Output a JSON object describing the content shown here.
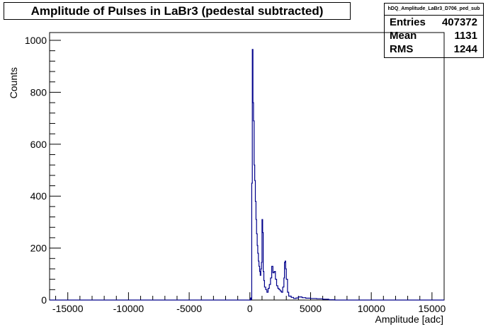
{
  "chart_data": {
    "type": "histogram",
    "title": "Amplitude of Pulses in LaBr3 (pedestal subtracted)",
    "xlabel": "Amplitude [adc]",
    "ylabel": "Counts",
    "xlim": [
      -16500,
      16000
    ],
    "ylim": [
      0,
      1030
    ],
    "x_ticks": [
      -15000,
      -10000,
      -5000,
      0,
      5000,
      10000,
      15000
    ],
    "x_tick_labels": [
      "-15000",
      "-10000",
      "-5000",
      "0",
      "5000",
      "10000",
      "15000"
    ],
    "y_ticks": [
      0,
      200,
      400,
      600,
      800,
      1000
    ],
    "y_tick_labels": [
      "0",
      "200",
      "400",
      "600",
      "800",
      "1000"
    ],
    "line_color": "#00008b",
    "stats": {
      "name": "hDQ_Amplitude_LaBr3_D706_ped_sub",
      "entries_label": "Entries",
      "entries": "407372",
      "mean_label": "Mean",
      "mean": "1131",
      "rms_label": "RMS",
      "rms": "1244"
    },
    "series": [
      {
        "points": [
          [
            -16500,
            0
          ],
          [
            0,
            0
          ],
          [
            50,
            8
          ],
          [
            100,
            2
          ],
          [
            150,
            450
          ],
          [
            200,
            965
          ],
          [
            250,
            760
          ],
          [
            300,
            690
          ],
          [
            350,
            520
          ],
          [
            400,
            460
          ],
          [
            450,
            380
          ],
          [
            500,
            310
          ],
          [
            550,
            255
          ],
          [
            600,
            210
          ],
          [
            650,
            180
          ],
          [
            700,
            150
          ],
          [
            750,
            130
          ],
          [
            800,
            110
          ],
          [
            850,
            95
          ],
          [
            900,
            120
          ],
          [
            950,
            145
          ],
          [
            1000,
            310
          ],
          [
            1050,
            260
          ],
          [
            1100,
            110
          ],
          [
            1150,
            75
          ],
          [
            1200,
            50
          ],
          [
            1300,
            40
          ],
          [
            1400,
            30
          ],
          [
            1500,
            45
          ],
          [
            1600,
            60
          ],
          [
            1700,
            85
          ],
          [
            1800,
            130
          ],
          [
            1900,
            105
          ],
          [
            2000,
            110
          ],
          [
            2100,
            80
          ],
          [
            2200,
            55
          ],
          [
            2300,
            45
          ],
          [
            2400,
            40
          ],
          [
            2500,
            35
          ],
          [
            2600,
            30
          ],
          [
            2700,
            50
          ],
          [
            2800,
            85
          ],
          [
            2850,
            145
          ],
          [
            2900,
            150
          ],
          [
            2950,
            120
          ],
          [
            3000,
            80
          ],
          [
            3100,
            30
          ],
          [
            3200,
            15
          ],
          [
            3400,
            10
          ],
          [
            3600,
            6
          ],
          [
            3800,
            8
          ],
          [
            4000,
            12
          ],
          [
            4300,
            9
          ],
          [
            4600,
            7
          ],
          [
            5000,
            6
          ],
          [
            5500,
            5
          ],
          [
            6000,
            3
          ],
          [
            6500,
            1
          ],
          [
            7000,
            0
          ],
          [
            16000,
            0
          ]
        ]
      }
    ]
  }
}
